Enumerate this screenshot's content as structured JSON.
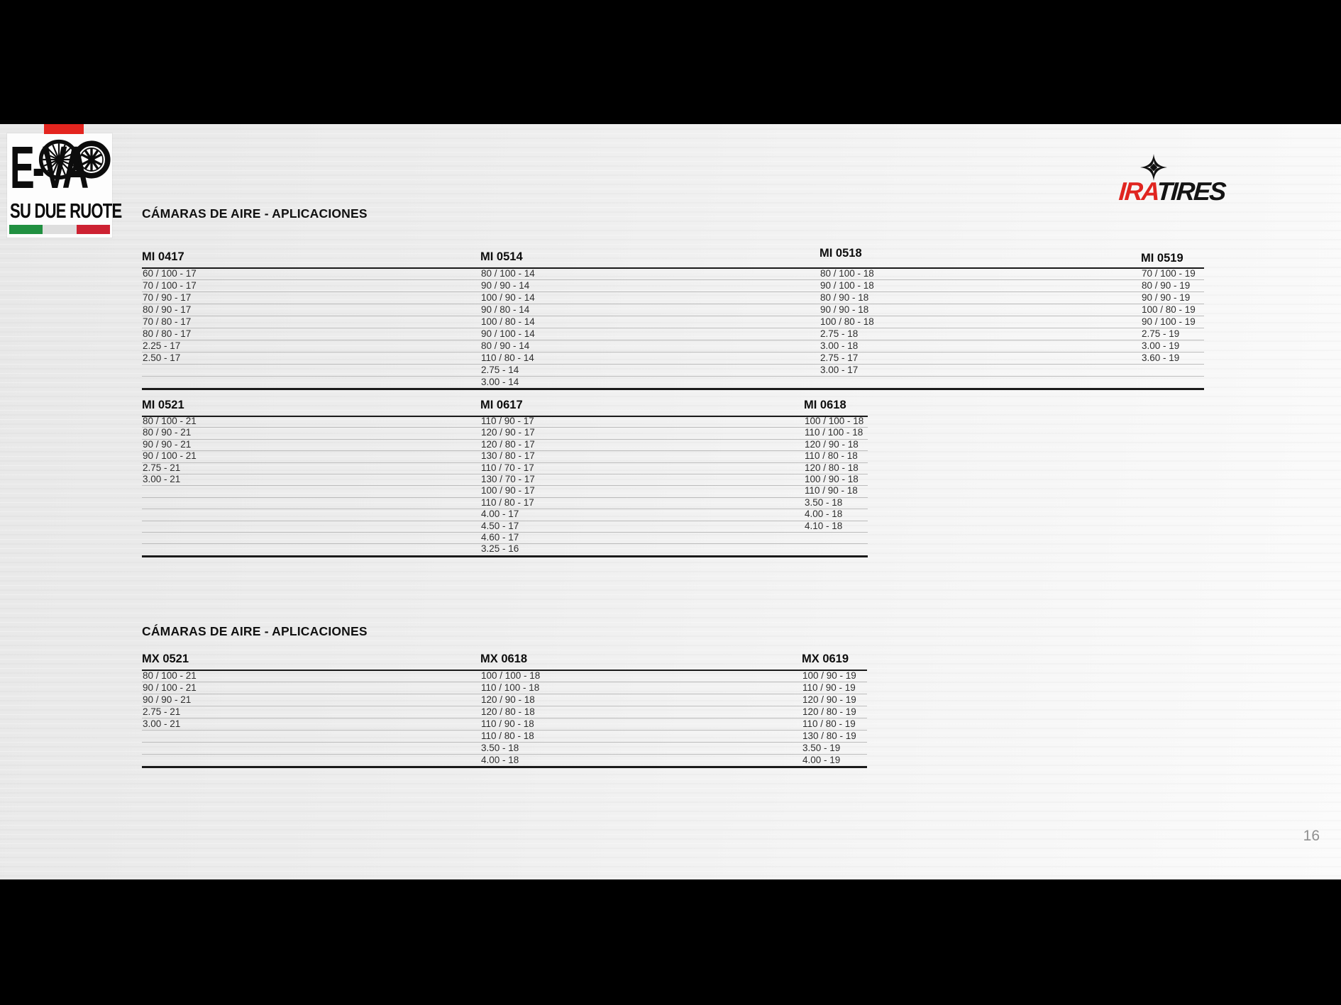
{
  "page": {
    "number": "16"
  },
  "branding": {
    "evacc": {
      "line1": "E-VA",
      "line2": "SU DUE RUOTE"
    },
    "ira": {
      "part1": "IRA",
      "part2": "TIRES"
    },
    "colors": {
      "tab_red": "#e4251f",
      "flag_green": "#219041",
      "flag_red": "#cd2232",
      "ira_red": "#e02520"
    }
  },
  "sections": [
    {
      "title": "CÁMARAS DE AIRE - APLICACIONES"
    },
    {
      "title": "CÁMARAS DE AIRE - APLICACIONES"
    }
  ],
  "tables": {
    "mi_a": {
      "row_count": 10,
      "columns": [
        {
          "header": "MI 0417",
          "rows": [
            "60 / 100 - 17",
            "70 / 100 - 17",
            "70 / 90 - 17",
            "80 / 90 - 17",
            "70 / 80 - 17",
            "80 / 80 - 17",
            "2.25 - 17",
            "2.50 - 17"
          ]
        },
        {
          "header": "MI 0514",
          "rows": [
            "80 / 100 - 14",
            "90 / 90 - 14",
            "100 / 90 - 14",
            "90 / 80 - 14",
            "100 / 80 - 14",
            "90 / 100 - 14",
            "80 / 90 - 14",
            "110 / 80 - 14",
            "2.75 - 14",
            "3.00 - 14"
          ]
        },
        {
          "header": "MI 0518",
          "rows": [
            "80 / 100 - 18",
            "90 / 100 - 18",
            "80 / 90 - 18",
            "90 / 90 - 18",
            "100 / 80 - 18",
            "2.75 - 18",
            "3.00 - 18",
            "2.75 - 17",
            "3.00 - 17"
          ]
        },
        {
          "header": "MI 0519",
          "rows": [
            "70 / 100 - 19",
            "80 / 90 - 19",
            "90 / 90 - 19",
            "100 / 80 - 19",
            "90 / 100 - 19",
            "2.75 - 19",
            "3.00 - 19",
            "3.60 - 19"
          ]
        }
      ]
    },
    "mi_b": {
      "row_count": 12,
      "columns": [
        {
          "header": "MI 0521",
          "rows": [
            "80 / 100 - 21",
            "80 / 90 - 21",
            "90 / 90 - 21",
            "90 / 100 - 21",
            "2.75 - 21",
            "3.00 - 21"
          ]
        },
        {
          "header": "MI 0617",
          "rows": [
            "110 / 90 - 17",
            "120 / 90 - 17",
            "120 / 80 - 17",
            "130 / 80 - 17",
            "110 / 70 - 17",
            "130 / 70 - 17",
            "100 / 90 - 17",
            "110 / 80 - 17",
            "4.00 - 17",
            "4.50 - 17",
            "4.60 - 17",
            "3.25 - 16"
          ]
        },
        {
          "header": "MI 0618",
          "rows": [
            "100 / 100 - 18",
            "110 / 100 - 18",
            "120 / 90 - 18",
            "110 / 80 - 18",
            "120 / 80 - 18",
            "100 / 90 - 18",
            "110 / 90 - 18",
            "3.50 - 18",
            "4.00 - 18",
            "4.10 - 18"
          ]
        }
      ]
    },
    "mx": {
      "row_count": 8,
      "columns": [
        {
          "header": "MX 0521",
          "rows": [
            "80 / 100 - 21",
            "90 / 100 - 21",
            "90 / 90 - 21",
            "2.75 - 21",
            "3.00 - 21"
          ]
        },
        {
          "header": "MX 0618",
          "rows": [
            "100 / 100 - 18",
            "110 / 100 - 18",
            "120 / 90 - 18",
            "120 / 80 - 18",
            "110 / 90 - 18",
            "110 / 80 - 18",
            "3.50 - 18",
            "4.00 - 18"
          ]
        },
        {
          "header": "MX 0619",
          "rows": [
            "100 / 90 - 19",
            "110 / 90 - 19",
            "120 / 90 - 19",
            "120 / 80 - 19",
            "110 / 80 - 19",
            "130 / 80 - 19",
            "3.50 - 19",
            "4.00 - 19"
          ]
        }
      ]
    }
  }
}
